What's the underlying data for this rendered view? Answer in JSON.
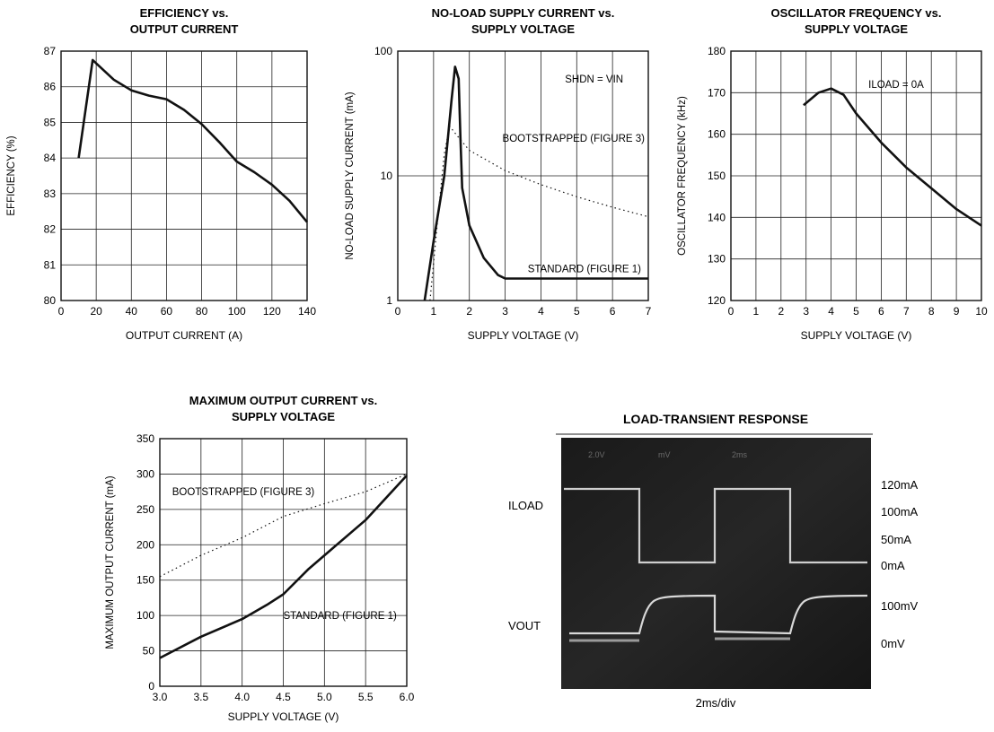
{
  "chart_data": [
    {
      "type": "line",
      "title_lines": [
        "EFFICIENCY vs.",
        "OUTPUT CURRENT"
      ],
      "xlabel": "OUTPUT CURRENT (A)",
      "ylabel": "EFFICIENCY (%)",
      "xlim": [
        0,
        140
      ],
      "ylim": [
        80,
        87
      ],
      "xticks": [
        0,
        20,
        40,
        60,
        80,
        100,
        120,
        140
      ],
      "yticks": [
        80,
        81,
        82,
        83,
        84,
        85,
        86,
        87
      ],
      "grid": true,
      "series": [
        {
          "style": "solid",
          "points": [
            [
              10,
              84.0
            ],
            [
              18,
              86.75
            ],
            [
              30,
              86.2
            ],
            [
              40,
              85.9
            ],
            [
              50,
              85.75
            ],
            [
              60,
              85.65
            ],
            [
              70,
              85.35
            ],
            [
              80,
              84.95
            ],
            [
              90,
              84.45
            ],
            [
              100,
              83.9
            ],
            [
              110,
              83.6
            ],
            [
              120,
              83.25
            ],
            [
              130,
              82.8
            ],
            [
              140,
              82.2
            ]
          ]
        }
      ],
      "annotations": []
    },
    {
      "type": "line",
      "title_lines": [
        "NO-LOAD SUPPLY CURRENT vs.",
        "SUPPLY VOLTAGE"
      ],
      "xlabel": "SUPPLY VOLTAGE (V)",
      "ylabel": "NO-LOAD SUPPLY CURRENT (mA)",
      "xlim": [
        0,
        7
      ],
      "ylim": [
        1,
        100
      ],
      "yscale": "log",
      "xticks": [
        0,
        1,
        2,
        3,
        4,
        5,
        6,
        7
      ],
      "yticks": [
        1,
        10,
        100
      ],
      "grid": true,
      "series": [
        {
          "name": "STANDARD (FIGURE 1)",
          "style": "solid",
          "points": [
            [
              0.75,
              1.0
            ],
            [
              1.0,
              3.0
            ],
            [
              1.3,
              10
            ],
            [
              1.5,
              40
            ],
            [
              1.6,
              75
            ],
            [
              1.7,
              60
            ],
            [
              1.75,
              20
            ],
            [
              1.8,
              8
            ],
            [
              2.0,
              4.0
            ],
            [
              2.4,
              2.2
            ],
            [
              2.8,
              1.6
            ],
            [
              3.0,
              1.5
            ],
            [
              4,
              1.5
            ],
            [
              5,
              1.5
            ],
            [
              6,
              1.5
            ],
            [
              7,
              1.5
            ]
          ]
        },
        {
          "name": "BOOTSTRAPPED (FIGURE 3)",
          "style": "dotted",
          "points": [
            [
              0.9,
              1.0
            ],
            [
              1.1,
              4.0
            ],
            [
              1.3,
              15
            ],
            [
              1.45,
              25
            ],
            [
              1.6,
              22
            ],
            [
              2.0,
              16
            ],
            [
              3,
              11
            ],
            [
              4,
              8.5
            ],
            [
              5,
              6.8
            ],
            [
              6,
              5.6
            ],
            [
              7,
              4.7
            ]
          ]
        }
      ],
      "annotations": [
        {
          "text": "SHDN = VIN",
          "x": 6.3,
          "y": 60
        },
        {
          "text": "BOOTSTRAPPED (FIGURE 3)",
          "x": 6.9,
          "y": 20
        },
        {
          "text": "STANDARD (FIGURE 1)",
          "x": 6.8,
          "y": 1.8
        }
      ]
    },
    {
      "type": "line",
      "title_lines": [
        "OSCILLATOR FREQUENCY vs.",
        "SUPPLY VOLTAGE"
      ],
      "xlabel": "SUPPLY VOLTAGE (V)",
      "ylabel": "OSCILLATOR FREQUENCY (kHz)",
      "xlim": [
        0,
        10
      ],
      "ylim": [
        120,
        180
      ],
      "xticks": [
        0,
        1,
        2,
        3,
        4,
        5,
        6,
        7,
        8,
        9,
        10
      ],
      "yticks": [
        120,
        130,
        140,
        150,
        160,
        170,
        180
      ],
      "grid": true,
      "series": [
        {
          "style": "solid",
          "points": [
            [
              2.9,
              167
            ],
            [
              3.5,
              170
            ],
            [
              4,
              171
            ],
            [
              4.5,
              169.5
            ],
            [
              5,
              165
            ],
            [
              6,
              158
            ],
            [
              7,
              152
            ],
            [
              8,
              147
            ],
            [
              9,
              142
            ],
            [
              10,
              138
            ]
          ]
        }
      ],
      "annotations": [
        {
          "text": "ILOAD = 0A",
          "x": 7.7,
          "y": 172
        }
      ]
    },
    {
      "type": "line",
      "title_lines": [
        "MAXIMUM OUTPUT CURRENT vs.",
        "SUPPLY VOLTAGE"
      ],
      "xlabel": "SUPPLY VOLTAGE (V)",
      "ylabel": "MAXIMUM OUTPUT CURRENT (mA)",
      "xlim": [
        3.0,
        6.0
      ],
      "ylim": [
        0,
        350
      ],
      "xticks": [
        3.0,
        3.5,
        4.0,
        4.5,
        5.0,
        5.5,
        6.0
      ],
      "yticks": [
        0,
        50,
        100,
        150,
        200,
        250,
        300,
        350
      ],
      "grid": true,
      "series": [
        {
          "name": "STANDARD (FIGURE 1)",
          "style": "solid",
          "points": [
            [
              3.0,
              40
            ],
            [
              3.5,
              70
            ],
            [
              4.0,
              95
            ],
            [
              4.3,
              115
            ],
            [
              4.5,
              130
            ],
            [
              4.8,
              165
            ],
            [
              5.0,
              185
            ],
            [
              5.5,
              235
            ],
            [
              6.0,
              298
            ]
          ]
        },
        {
          "name": "BOOTSTRAPPED (FIGURE 3)",
          "style": "dotted",
          "points": [
            [
              3.0,
              155
            ],
            [
              3.5,
              185
            ],
            [
              4.0,
              210
            ],
            [
              4.5,
              240
            ],
            [
              5.0,
              258
            ],
            [
              5.5,
              275
            ],
            [
              6.0,
              300
            ]
          ]
        }
      ],
      "annotations": [
        {
          "text": "BOOTSTRAPPED (FIGURE 3)",
          "x": 3.15,
          "y": 275
        },
        {
          "text": "STANDARD (FIGURE 1)",
          "x": 4.5,
          "y": 100
        }
      ]
    }
  ],
  "scope": {
    "title": "LOAD-TRANSIENT RESPONSE",
    "footer": "2ms/div",
    "channel_labels": [
      "ILOAD",
      "VOUT"
    ],
    "right_labels": [
      "120mA",
      "100mA",
      "50mA",
      "0mA",
      "100mV",
      "0mV"
    ]
  }
}
